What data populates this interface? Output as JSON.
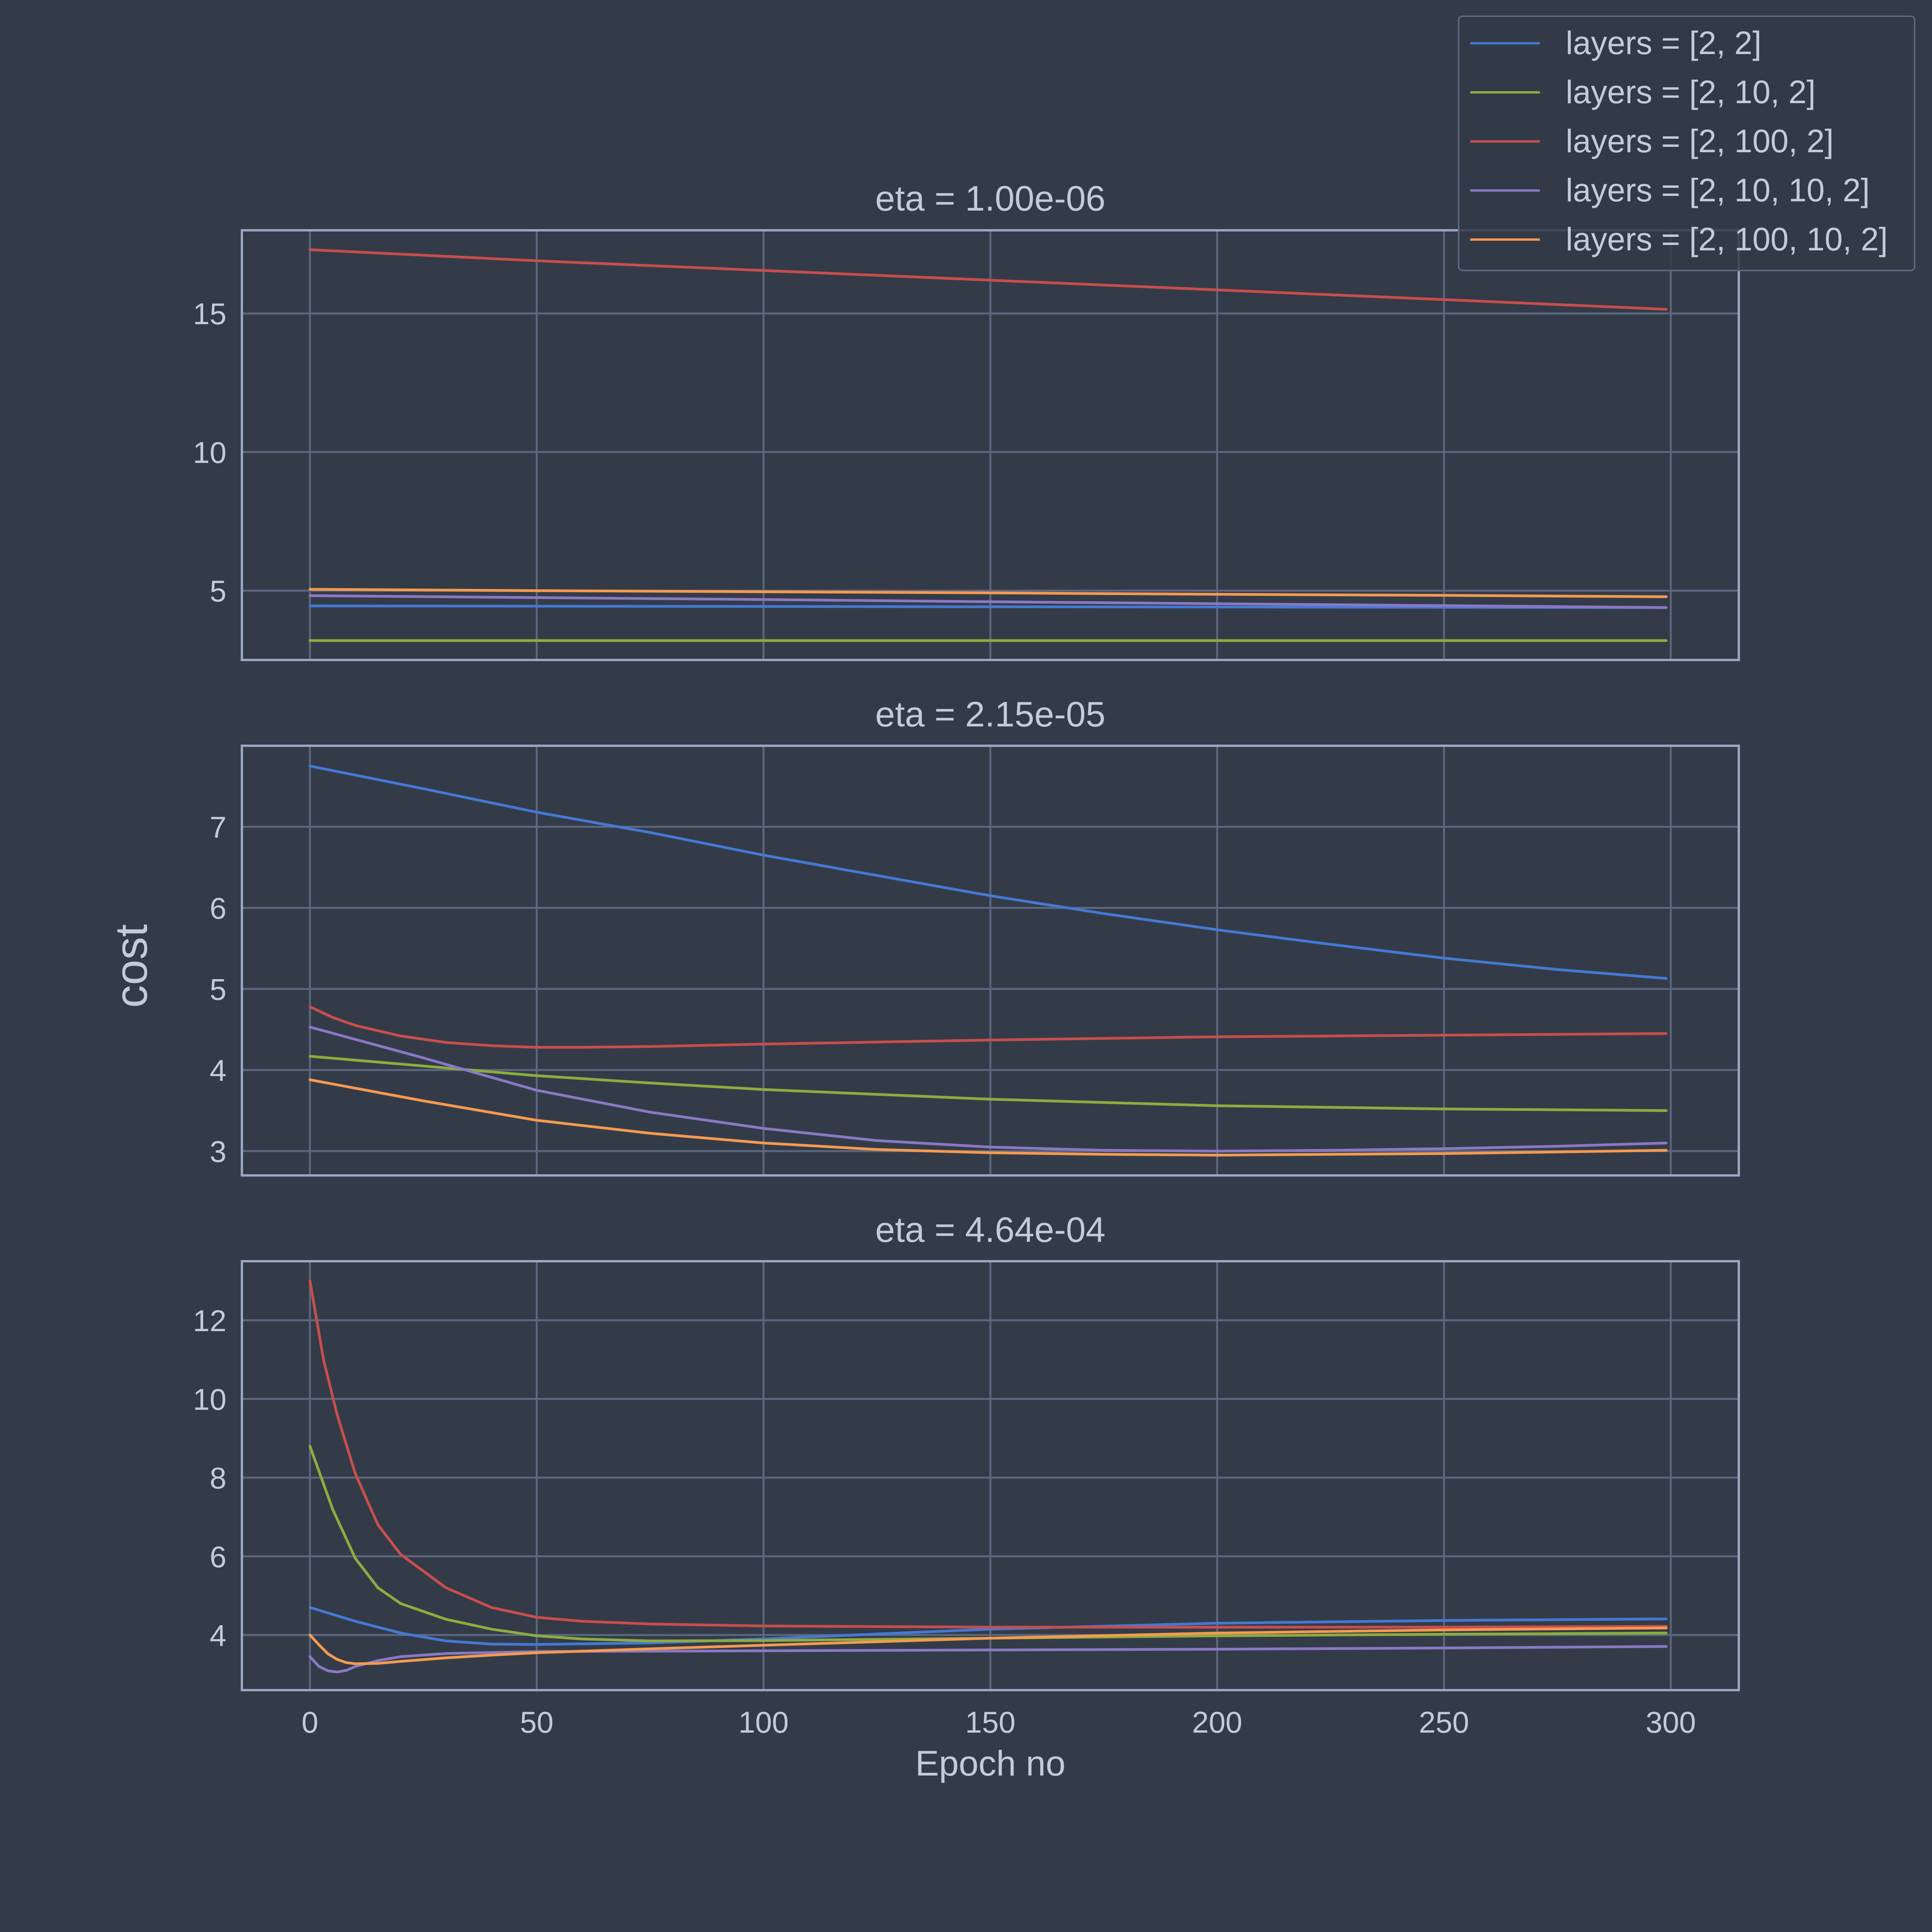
{
  "figure": {
    "ylabel": "cost",
    "xlabel": "Epoch no",
    "background": "#343b48",
    "grid_color": "#5c6780",
    "frame_color": "#9aa7c4",
    "text_color": "#c3cad9"
  },
  "legend": {
    "placement": "top-right",
    "entries": [
      {
        "label": "layers = [2, 2]",
        "color": "#4479d4"
      },
      {
        "label": "layers = [2, 10, 2]",
        "color": "#8cad3e"
      },
      {
        "label": "layers = [2, 100, 2]",
        "color": "#c84e4e"
      },
      {
        "label": "layers = [2, 10, 10, 2]",
        "color": "#8a78c4"
      },
      {
        "label": "layers = [2, 100, 10, 2]",
        "color": "#f59a4f"
      }
    ]
  },
  "chart_data": [
    {
      "type": "line",
      "title": "eta = 1.00e-06",
      "xlim": [
        -15,
        315
      ],
      "ylim": [
        2.5,
        18
      ],
      "xticks": [
        0,
        50,
        100,
        150,
        200,
        250,
        300
      ],
      "yticks": [
        5,
        10,
        15
      ],
      "grid": true,
      "series": [
        {
          "name": "layers = [2, 2]",
          "color": "#4479d4",
          "x": [
            0,
            50,
            100,
            150,
            200,
            250,
            299
          ],
          "y": [
            4.45,
            4.44,
            4.43,
            4.42,
            4.41,
            4.4,
            4.39
          ]
        },
        {
          "name": "layers = [2, 10, 2]",
          "color": "#8cad3e",
          "x": [
            0,
            100,
            200,
            299
          ],
          "y": [
            3.2,
            3.2,
            3.2,
            3.2
          ]
        },
        {
          "name": "layers = [2, 100, 2]",
          "color": "#c84e4e",
          "x": [
            0,
            50,
            100,
            150,
            200,
            250,
            299
          ],
          "y": [
            17.3,
            16.9,
            16.55,
            16.2,
            15.85,
            15.5,
            15.15
          ]
        },
        {
          "name": "layers = [2, 10, 10, 2]",
          "color": "#8a78c4",
          "x": [
            0,
            50,
            100,
            150,
            200,
            250,
            299
          ],
          "y": [
            4.82,
            4.75,
            4.68,
            4.6,
            4.53,
            4.46,
            4.39
          ]
        },
        {
          "name": "layers = [2, 100, 10, 2]",
          "color": "#f59a4f",
          "x": [
            0,
            50,
            100,
            150,
            200,
            250,
            299
          ],
          "y": [
            5.05,
            5.0,
            4.96,
            4.92,
            4.87,
            4.83,
            4.78
          ]
        }
      ]
    },
    {
      "type": "line",
      "title": "eta = 2.15e-05",
      "xlim": [
        -15,
        315
      ],
      "ylim": [
        2.7,
        8.0
      ],
      "xticks": [
        0,
        50,
        100,
        150,
        200,
        250,
        300
      ],
      "yticks": [
        3,
        4,
        5,
        6,
        7
      ],
      "grid": true,
      "series": [
        {
          "name": "layers = [2, 2]",
          "color": "#4479d4",
          "x": [
            0,
            25,
            50,
            75,
            100,
            125,
            150,
            175,
            200,
            225,
            250,
            275,
            299
          ],
          "y": [
            7.75,
            7.47,
            7.18,
            6.93,
            6.65,
            6.4,
            6.15,
            5.93,
            5.73,
            5.55,
            5.38,
            5.24,
            5.13
          ]
        },
        {
          "name": "layers = [2, 10, 2]",
          "color": "#8cad3e",
          "x": [
            0,
            25,
            50,
            75,
            100,
            125,
            150,
            175,
            200,
            225,
            250,
            275,
            299
          ],
          "y": [
            4.17,
            4.05,
            3.93,
            3.84,
            3.76,
            3.7,
            3.64,
            3.6,
            3.56,
            3.54,
            3.52,
            3.51,
            3.5
          ]
        },
        {
          "name": "layers = [2, 100, 2]",
          "color": "#c84e4e",
          "x": [
            0,
            5,
            10,
            20,
            30,
            40,
            50,
            60,
            75,
            100,
            150,
            200,
            250,
            299
          ],
          "y": [
            4.78,
            4.65,
            4.55,
            4.42,
            4.34,
            4.3,
            4.28,
            4.28,
            4.29,
            4.32,
            4.37,
            4.41,
            4.43,
            4.45
          ]
        },
        {
          "name": "layers = [2, 10, 10, 2]",
          "color": "#8a78c4",
          "x": [
            0,
            25,
            50,
            75,
            100,
            125,
            150,
            175,
            200,
            225,
            250,
            275,
            299
          ],
          "y": [
            4.53,
            4.15,
            3.75,
            3.48,
            3.28,
            3.13,
            3.05,
            3.01,
            3.0,
            3.01,
            3.03,
            3.06,
            3.1
          ]
        },
        {
          "name": "layers = [2, 100, 10, 2]",
          "color": "#f59a4f",
          "x": [
            0,
            25,
            50,
            75,
            100,
            125,
            150,
            175,
            200,
            225,
            250,
            275,
            299
          ],
          "y": [
            3.88,
            3.62,
            3.38,
            3.22,
            3.1,
            3.02,
            2.98,
            2.96,
            2.95,
            2.96,
            2.97,
            2.99,
            3.01
          ]
        }
      ]
    },
    {
      "type": "line",
      "title": "eta = 4.64e-04",
      "xlim": [
        -15,
        315
      ],
      "ylim": [
        2.6,
        13.5
      ],
      "xticks": [
        0,
        50,
        100,
        150,
        200,
        250,
        300
      ],
      "yticks": [
        4,
        6,
        8,
        10,
        12
      ],
      "grid": true,
      "series": [
        {
          "name": "layers = [2, 2]",
          "color": "#4479d4",
          "x": [
            0,
            10,
            20,
            30,
            40,
            50,
            75,
            100,
            150,
            200,
            250,
            299
          ],
          "y": [
            4.7,
            4.35,
            4.05,
            3.85,
            3.77,
            3.76,
            3.8,
            3.9,
            4.15,
            4.3,
            4.37,
            4.41
          ]
        },
        {
          "name": "layers = [2, 10, 2]",
          "color": "#8cad3e",
          "x": [
            0,
            5,
            10,
            15,
            20,
            30,
            40,
            50,
            60,
            75,
            100,
            150,
            200,
            250,
            299
          ],
          "y": [
            8.8,
            7.2,
            5.95,
            5.2,
            4.8,
            4.4,
            4.15,
            3.98,
            3.9,
            3.85,
            3.86,
            3.92,
            3.98,
            4.02,
            4.05
          ]
        },
        {
          "name": "layers = [2, 100, 2]",
          "color": "#c84e4e",
          "x": [
            0,
            3,
            6,
            10,
            15,
            20,
            30,
            40,
            50,
            60,
            75,
            100,
            150,
            200,
            250,
            299
          ],
          "y": [
            13.0,
            11.0,
            9.6,
            8.1,
            6.8,
            6.05,
            5.2,
            4.7,
            4.45,
            4.35,
            4.28,
            4.23,
            4.2,
            4.2,
            4.2,
            4.22
          ]
        },
        {
          "name": "layers = [2, 10, 10, 2]",
          "color": "#8a78c4",
          "x": [
            0,
            2,
            4,
            6,
            8,
            10,
            15,
            20,
            30,
            50,
            100,
            150,
            200,
            250,
            299
          ],
          "y": [
            3.45,
            3.2,
            3.09,
            3.06,
            3.1,
            3.2,
            3.35,
            3.45,
            3.53,
            3.58,
            3.6,
            3.62,
            3.64,
            3.67,
            3.71
          ]
        },
        {
          "name": "layers = [2, 100, 10, 2]",
          "color": "#f59a4f",
          "x": [
            0,
            2,
            4,
            6,
            8,
            10,
            15,
            20,
            30,
            40,
            50,
            75,
            100,
            150,
            200,
            250,
            299
          ],
          "y": [
            4.0,
            3.75,
            3.52,
            3.38,
            3.3,
            3.27,
            3.28,
            3.33,
            3.42,
            3.49,
            3.55,
            3.65,
            3.74,
            3.92,
            4.05,
            4.13,
            4.18
          ]
        }
      ]
    }
  ]
}
